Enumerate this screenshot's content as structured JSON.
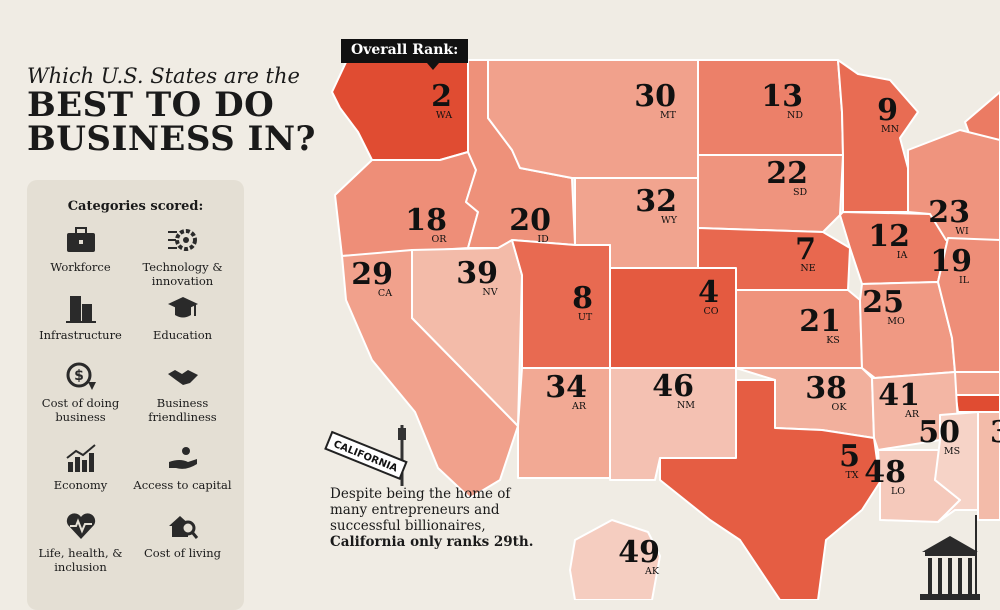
{
  "header": {
    "subtitle": "Which U.S. States are the",
    "title_line1": "BEST TO DO",
    "title_line2": "BUSINESS IN?"
  },
  "legend": {
    "title": "Categories scored:",
    "items": [
      {
        "label": "Workforce",
        "icon": "briefcase-icon"
      },
      {
        "label": "Technology & innovation",
        "icon": "gear-circuit-icon"
      },
      {
        "label": "Infrastructure",
        "icon": "buildings-icon"
      },
      {
        "label": "Education",
        "icon": "graduation-cap-icon"
      },
      {
        "label": "Cost of doing business",
        "icon": "dollar-coin-icon"
      },
      {
        "label": "Business friendliness",
        "icon": "handshake-icon"
      },
      {
        "label": "Economy",
        "icon": "bar-chart-icon"
      },
      {
        "label": "Access to capital",
        "icon": "hand-coins-icon"
      },
      {
        "label": "Life, health, & inclusion",
        "icon": "heart-pulse-icon"
      },
      {
        "label": "Cost of living",
        "icon": "house-magnifier-icon"
      }
    ]
  },
  "map": {
    "badge": "Overall Rank:",
    "states": [
      {
        "abbr": "WA",
        "rank": "2",
        "color": "#e04c32"
      },
      {
        "abbr": "OR",
        "rank": "18",
        "color": "#ee8e78"
      },
      {
        "abbr": "CA",
        "rank": "29",
        "color": "#f1a18c"
      },
      {
        "abbr": "NV",
        "rank": "39",
        "color": "#f3bba9"
      },
      {
        "abbr": "ID",
        "rank": "20",
        "color": "#ee917a"
      },
      {
        "abbr": "MT",
        "rank": "30",
        "color": "#f1a18c"
      },
      {
        "abbr": "WY",
        "rank": "32",
        "color": "#f1a48f"
      },
      {
        "abbr": "UT",
        "rank": "8",
        "color": "#e86a51"
      },
      {
        "abbr": "CO",
        "rank": "4",
        "color": "#e45a40"
      },
      {
        "abbr": "AR",
        "rank": "34",
        "color": "#f2a994"
      },
      {
        "abbr": "NM",
        "rank": "46",
        "color": "#f4c1b2"
      },
      {
        "abbr": "ND",
        "rank": "13",
        "color": "#ec8069"
      },
      {
        "abbr": "SD",
        "rank": "22",
        "color": "#ef947e"
      },
      {
        "abbr": "NE",
        "rank": "7",
        "color": "#e8684f"
      },
      {
        "abbr": "KS",
        "rank": "21",
        "color": "#ef937c"
      },
      {
        "abbr": "OK",
        "rank": "38",
        "color": "#f2b09d"
      },
      {
        "abbr": "TX",
        "rank": "5",
        "color": "#e55d43"
      },
      {
        "abbr": "MN",
        "rank": "9",
        "color": "#e86c53"
      },
      {
        "abbr": "IA",
        "rank": "12",
        "color": "#eb7b63"
      },
      {
        "abbr": "MO",
        "rank": "25",
        "color": "#f09983"
      },
      {
        "abbr": "AR",
        "rank": "41",
        "color": "#f3b6a4"
      },
      {
        "abbr": "LO",
        "rank": "48",
        "color": "#f5c9bb"
      },
      {
        "abbr": "WI",
        "rank": "23",
        "color": "#ef947e"
      },
      {
        "abbr": "IL",
        "rank": "19",
        "color": "#ee8e78"
      },
      {
        "abbr": "MS",
        "rank": "50",
        "color": "#f6d3c7"
      },
      {
        "abbr": "AK",
        "rank": "49",
        "color": "#f5cdc0"
      }
    ]
  },
  "callout": {
    "sign": "CALIFORNIA",
    "text": "Despite being the home of many entrepreneurs and successful billionaires,",
    "bold": "California only ranks 29th."
  }
}
